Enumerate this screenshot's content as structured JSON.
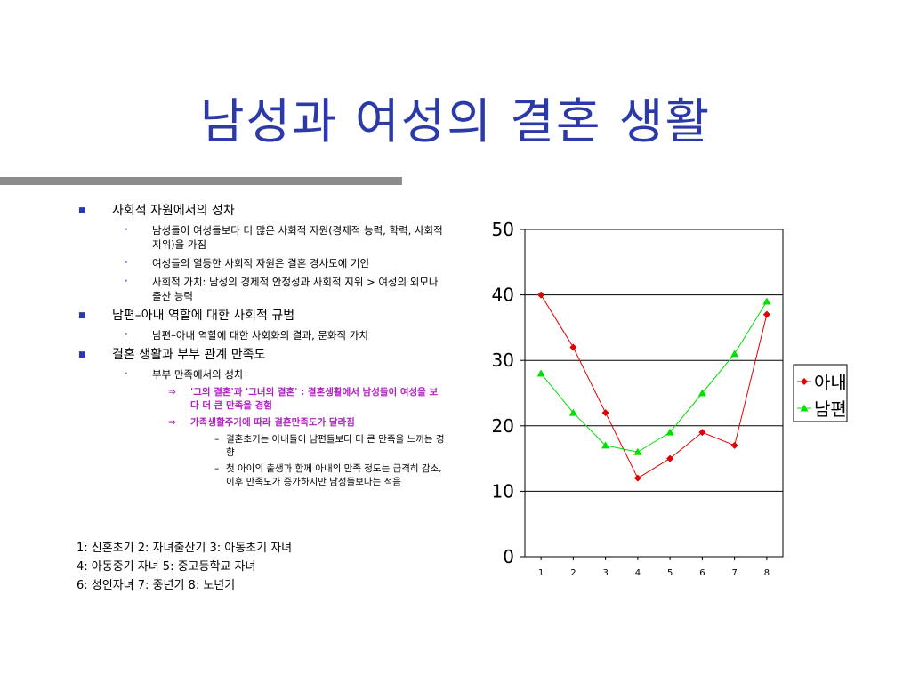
{
  "title": "남성과 여성의 결혼 생활",
  "bullets": [
    {
      "text": "사회적 자원에서의 성차",
      "children": [
        {
          "text": "남성들이 여성들보다 더 많은 사회적 자원(경제적 능력, 학력, 사회적 지위)을 가짐"
        },
        {
          "text": "여성들의 열등한 사회적 자원은 결혼 경사도에 기인"
        },
        {
          "text": "사회적 가치: 남성의 경제적 안정성과 사회적 지위 > 여성의 외모나 출산 능력"
        }
      ]
    },
    {
      "text": "남편–아내 역할에 대한 사회적 규범",
      "children": [
        {
          "text": "남편–아내 역할에 대한 사회화의 결과, 문화적 가치"
        }
      ]
    },
    {
      "text": "결혼 생활과 부부 관계 만족도",
      "children": [
        {
          "text": "부부 만족에서의 성차",
          "children": [
            {
              "text": "'그의 결혼'과 '그녀의 결혼' : 결혼생활에서 남성들이 여성을 보다 더 큰 만족을 경험"
            },
            {
              "text": "가족생활주기에 따라 결혼만족도가 달라짐",
              "children": [
                {
                  "text": "결혼초기는 아내들이 남편들보다 더 큰 만족을 느끼는 경향"
                },
                {
                  "text": "첫 아이의 출생과 함께 아내의 만족 정도는 급격히 감소, 이후 만족도가 증가하지만 남성들보다는 적음"
                }
              ]
            }
          ]
        }
      ]
    }
  ],
  "stage_legend": [
    "1: 신혼초기 2: 자녀출산기 3: 아동초기 자녀",
    "4: 아동중기 자녀 5: 중고등학교 자녀",
    "6: 성인자녀 7: 중년기 8: 노년기"
  ],
  "colors": {
    "title": "#2b3aa8",
    "wife": "#e00000",
    "husband": "#00e000"
  },
  "chart_data": {
    "type": "line",
    "x": [
      "1",
      "2",
      "3",
      "4",
      "5",
      "6",
      "7",
      "8"
    ],
    "ylim": [
      0,
      50
    ],
    "yticks": [
      "0",
      "10",
      "20",
      "30",
      "40",
      "50"
    ],
    "grid": true,
    "legend_position": "right",
    "series": [
      {
        "name": "아내",
        "color": "#e00000",
        "marker": "diamond",
        "values": [
          40,
          32,
          22,
          12,
          15,
          19,
          17,
          37
        ]
      },
      {
        "name": "남편",
        "color": "#00e000",
        "marker": "triangle",
        "values": [
          28,
          22,
          17,
          16,
          19,
          25,
          31,
          39
        ]
      }
    ]
  }
}
